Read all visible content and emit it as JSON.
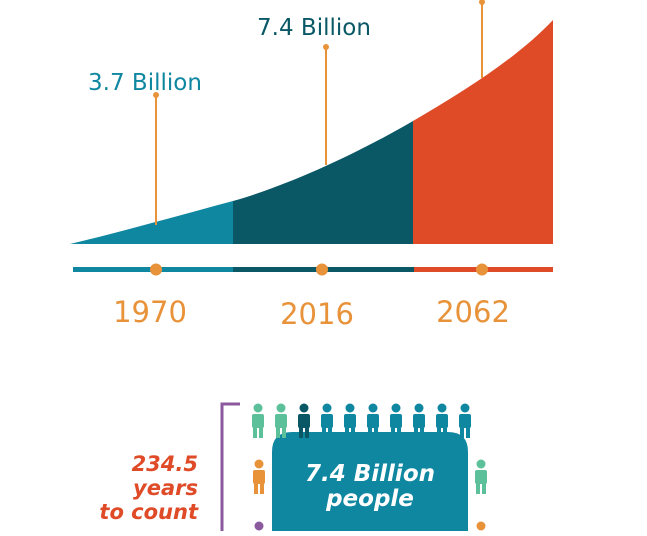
{
  "colors": {
    "teal": "#0f87a1",
    "dark_teal": "#0a5866",
    "orange_red": "#df4a27",
    "orange": "#e8923a",
    "green": "#5cc09a",
    "purple": "#8b5a9e"
  },
  "milestones": [
    {
      "year": "1970",
      "population": "3.7 Billion"
    },
    {
      "year": "2016",
      "population": "7.4 Billion"
    },
    {
      "year": "2062",
      "population": ""
    }
  ],
  "counting": {
    "line1": "234.5",
    "line2": "years",
    "line3": "to count"
  },
  "people_box": {
    "line1": "7.4 Billion",
    "line2": "people"
  },
  "icons": [
    "person-icon",
    "bracket"
  ]
}
